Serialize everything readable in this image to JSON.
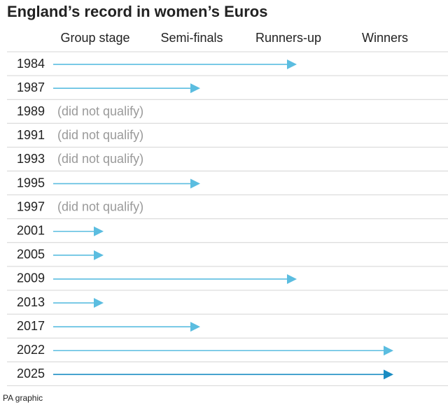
{
  "chart_data": {
    "type": "arrow",
    "title": "England’s record in women’s Euros",
    "source": "PA graphic",
    "categories": [
      "1984",
      "1987",
      "1989",
      "1991",
      "1993",
      "1995",
      "1997",
      "2001",
      "2005",
      "2009",
      "2013",
      "2017",
      "2022",
      "2025"
    ],
    "values": [
      3,
      2,
      null,
      null,
      null,
      2,
      null,
      1,
      1,
      3,
      1,
      2,
      4,
      4
    ],
    "missing_label": "(did not qualify)",
    "colors": [
      "#5bbde0",
      "#5bbde0",
      null,
      null,
      null,
      "#5bbde0",
      null,
      "#5bbde0",
      "#5bbde0",
      "#5bbde0",
      "#5bbde0",
      "#5bbde0",
      "#5bbde0",
      "#1a8cc2"
    ],
    "xlim": [
      0.5,
      4
    ],
    "xticks": [
      {
        "value": 1,
        "label": "Group stage"
      },
      {
        "value": 2,
        "label": "Semi-finals"
      },
      {
        "value": 3,
        "label": "Runners-up"
      },
      {
        "value": 4,
        "label": "Winners"
      }
    ],
    "grid": true
  }
}
